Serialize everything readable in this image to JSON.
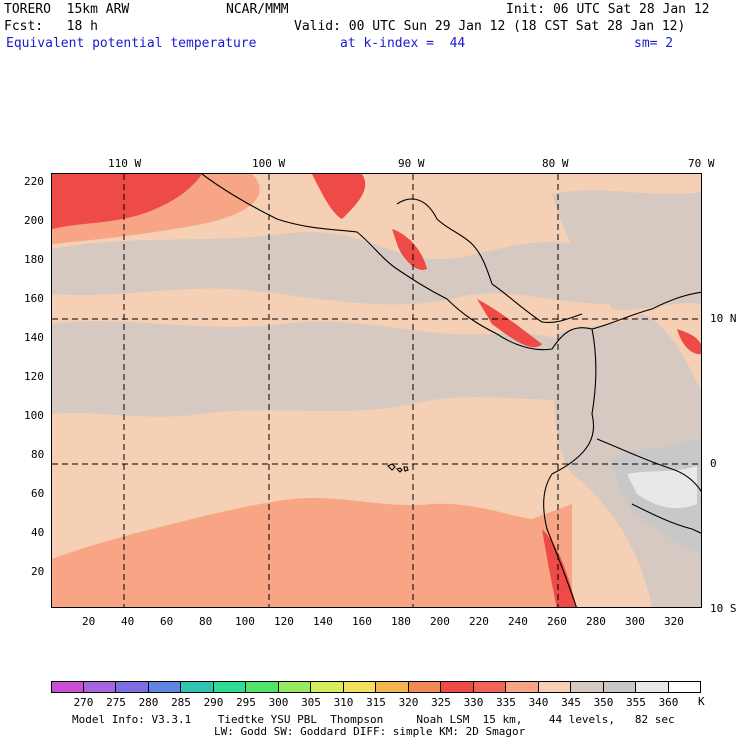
{
  "header": {
    "model": "TORERO  15km ARW",
    "center": "NCAR/MMM",
    "init": "Init: 06 UTC Sat 28 Jan 12",
    "fcst": "Fcst:   18 h",
    "valid": "Valid: 00 UTC Sun 29 Jan 12 (18 CST Sat 28 Jan 12)",
    "field": "Equivalent potential temperature",
    "level": "at k-index =  44",
    "smooth": "sm= 2"
  },
  "top_axis": [
    "110 W",
    "100 W",
    "90 W",
    "80 W",
    "70 W"
  ],
  "left_axis": [
    "220",
    "200",
    "180",
    "160",
    "140",
    "120",
    "100",
    "80",
    "60",
    "40",
    "20"
  ],
  "right_axis": [
    "10 N",
    "0",
    "10 S"
  ],
  "bottom_axis": [
    "20",
    "40",
    "60",
    "80",
    "100",
    "120",
    "140",
    "160",
    "180",
    "200",
    "220",
    "240",
    "260",
    "280",
    "300",
    "320"
  ],
  "colorbar": {
    "unit": "K",
    "labels": [
      "270",
      "275",
      "280",
      "285",
      "290",
      "295",
      "300",
      "305",
      "310",
      "315",
      "320",
      "325",
      "330",
      "335",
      "340",
      "345",
      "350",
      "355",
      "360"
    ],
    "colors": [
      "#c94fd4",
      "#a766dd",
      "#7d6ee0",
      "#5e86e0",
      "#33c3b2",
      "#2edb97",
      "#52e36a",
      "#96eb5e",
      "#d4ee5e",
      "#f3e05c",
      "#f5b652",
      "#f28a55",
      "#ee4a46",
      "#f0645a",
      "#f7a585",
      "#f6d0b4",
      "#d6c9c2",
      "#c8c8c8",
      "#e8e8e8",
      "#ffffff"
    ]
  },
  "map": {
    "field_colors": {
      "t345": "#f6d0b4",
      "t350": "#d6c9c2",
      "t340": "#f7a585",
      "t335": "#f0645a",
      "t330": "#ee4a46",
      "t355": "#c8c8c8",
      "t360": "#e8e8e8"
    }
  },
  "footer": {
    "line1": "Model Info: V3.3.1    Tiedtke YSU PBL  Thompson     Noah LSM  15 km,    44 levels,   82 sec",
    "line2": "LW: Godd SW: Goddard DIFF: simple KM: 2D Smagor"
  }
}
